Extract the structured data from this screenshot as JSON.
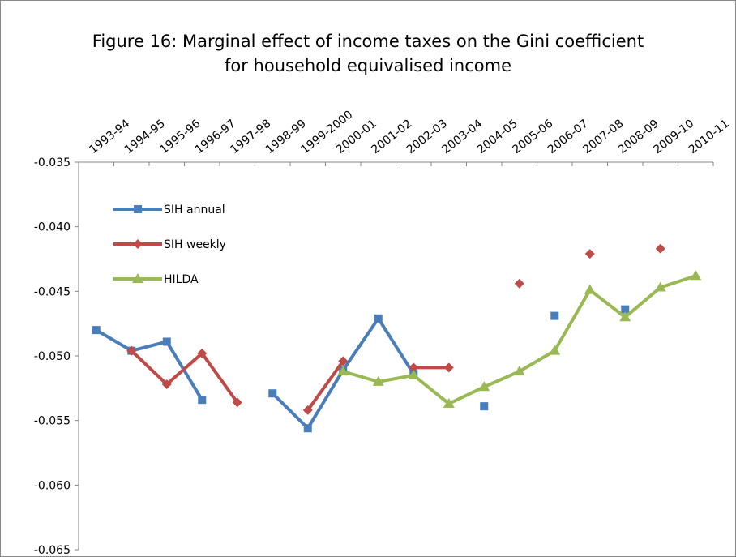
{
  "chart_data": {
    "type": "line",
    "title": "Figure 16: Marginal effect of income taxes on the Gini coefficient for household equivalised income",
    "categories": [
      "1993-94",
      "1994-95",
      "1995-96",
      "1996-97",
      "1997-98",
      "1998-99",
      "1999-2000",
      "2000-01",
      "2001-02",
      "2002-03",
      "2003-04",
      "2004-05",
      "2005-06",
      "2006-07",
      "2007-08",
      "2008-09",
      "2009-10",
      "2010-11"
    ],
    "series": [
      {
        "name": "SIH annual",
        "color": "#4a7ebb",
        "marker": "square",
        "values": [
          -0.048,
          -0.0496,
          -0.0489,
          -0.0534,
          null,
          -0.0529,
          -0.0556,
          -0.0511,
          -0.0471,
          -0.0514,
          null,
          -0.0539,
          null,
          -0.0469,
          null,
          -0.0464,
          null,
          null
        ]
      },
      {
        "name": "SIH weekly",
        "color": "#be4b48",
        "marker": "diamond",
        "values": [
          null,
          -0.0496,
          -0.0522,
          -0.0498,
          -0.0536,
          null,
          -0.0542,
          -0.0504,
          null,
          -0.0509,
          -0.0509,
          null,
          -0.0444,
          null,
          -0.0421,
          null,
          -0.0417,
          null
        ]
      },
      {
        "name": "HILDA",
        "color": "#98b954",
        "marker": "triangle",
        "values": [
          null,
          null,
          null,
          null,
          null,
          null,
          null,
          -0.0512,
          -0.052,
          -0.0515,
          -0.0537,
          -0.0524,
          -0.0512,
          -0.0496,
          -0.0449,
          -0.047,
          -0.0447,
          -0.0438
        ]
      }
    ],
    "ylim": [
      -0.065,
      -0.035
    ],
    "yticks": [
      -0.035,
      {
        "value": -0.04,
        "label": "-0.040"
      },
      -0.045,
      {
        "value": -0.05,
        "label": "-0.050"
      },
      -0.055,
      {
        "value": -0.06,
        "label": "-0.060"
      },
      -0.065
    ],
    "legend": "upper-left"
  }
}
